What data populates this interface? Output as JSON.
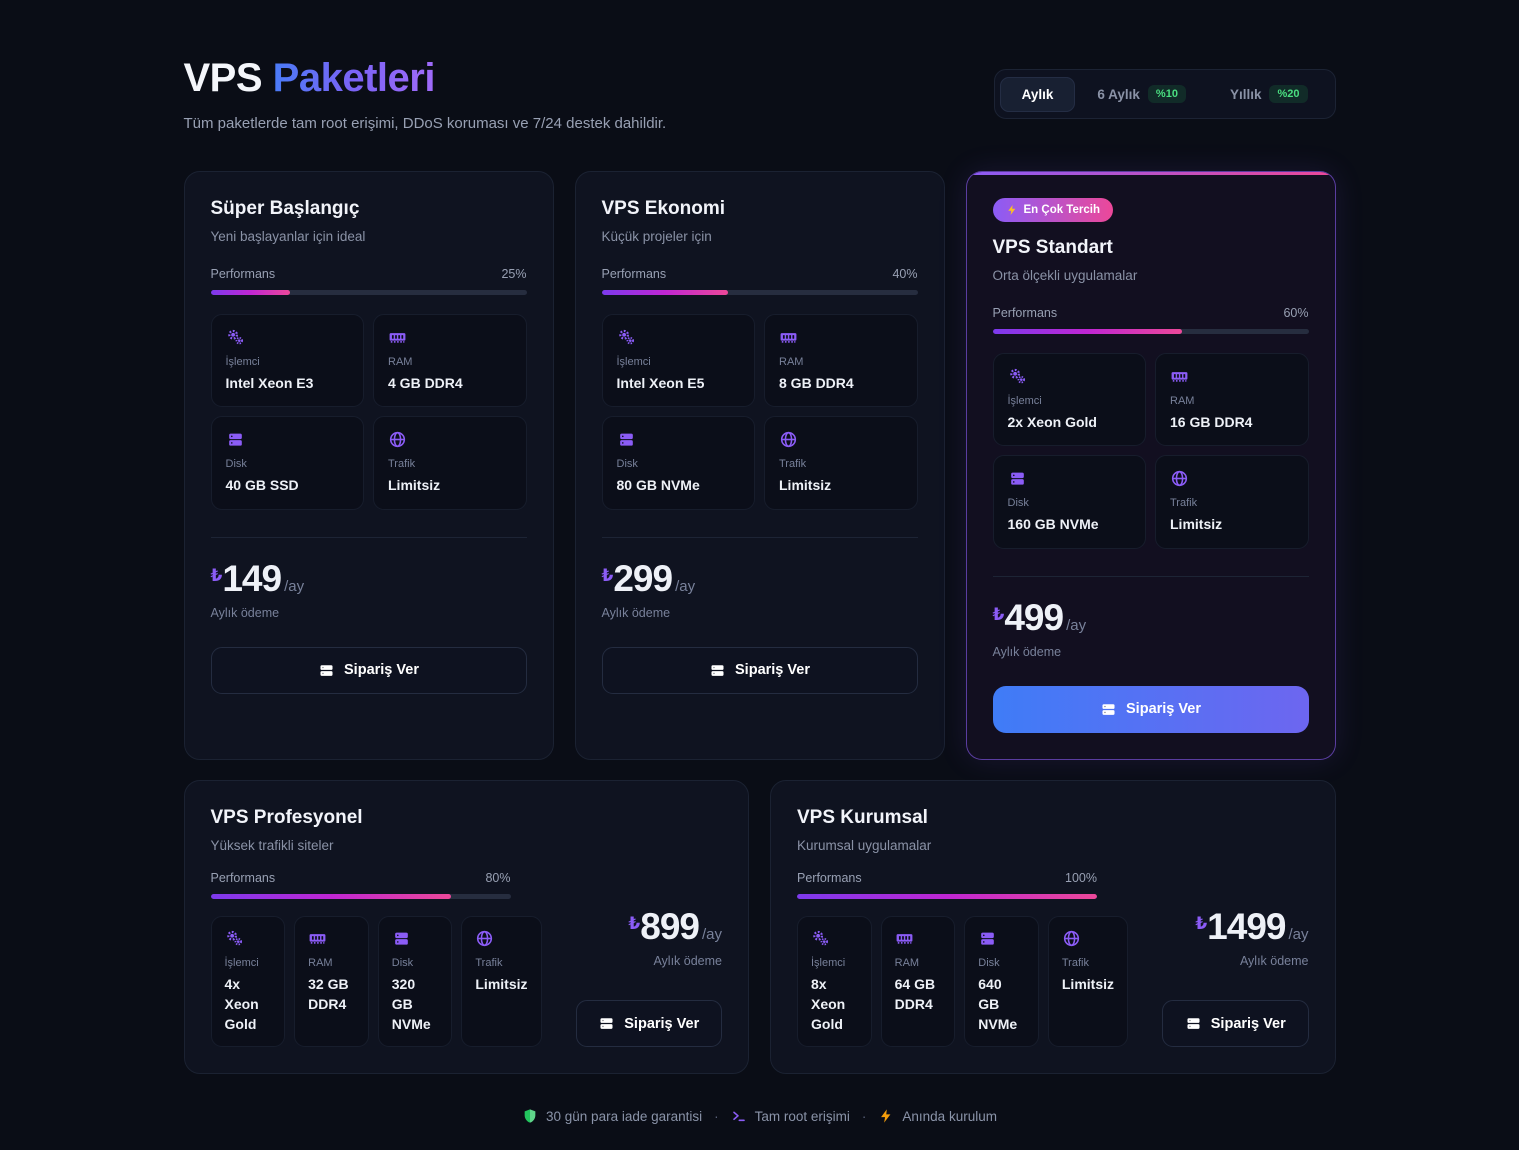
{
  "header": {
    "title_primary": "VPS",
    "title_accent": "Paketleri",
    "subtitle": "Tüm paketlerde tam root erişimi, DDoS koruması ve 7/24 destek dahildir."
  },
  "billing": {
    "active": "Aylık",
    "options": [
      {
        "label": "Aylık",
        "badge": ""
      },
      {
        "label": "6 Aylık",
        "badge": "%10"
      },
      {
        "label": "Yıllık",
        "badge": "%20"
      }
    ]
  },
  "labels": {
    "performance": "Performans",
    "billing_note": "Aylık ödeme",
    "cta": "Sipariş Ver",
    "currency": "₺",
    "period": "/ay"
  },
  "plans": [
    {
      "name": "Süper Başlangıç",
      "description": "Yeni başlayanlar için ideal",
      "performance_pct": "25%",
      "performance_value": 25,
      "specs": [
        {
          "icon": "cpu-icon",
          "label": "İşlemci",
          "value": "Intel Xeon E3"
        },
        {
          "icon": "ram-icon",
          "label": "RAM",
          "value": "4 GB DDR4"
        },
        {
          "icon": "disk-icon",
          "label": "Disk",
          "value": "40 GB SSD"
        },
        {
          "icon": "globe-icon",
          "label": "Trafik",
          "value": "Limitsiz"
        }
      ],
      "price": "149"
    },
    {
      "name": "VPS Ekonomi",
      "description": "Küçük projeler için",
      "performance_pct": "40%",
      "performance_value": 40,
      "specs": [
        {
          "icon": "cpu-icon",
          "label": "İşlemci",
          "value": "Intel Xeon E5"
        },
        {
          "icon": "ram-icon",
          "label": "RAM",
          "value": "8 GB DDR4"
        },
        {
          "icon": "disk-icon",
          "label": "Disk",
          "value": "80 GB NVMe"
        },
        {
          "icon": "globe-icon",
          "label": "Trafik",
          "value": "Limitsiz"
        }
      ],
      "price": "299"
    },
    {
      "name": "VPS Standart",
      "description": "Orta ölçekli uygulamalar",
      "badge": "En Çok Tercih",
      "performance_pct": "60%",
      "performance_value": 60,
      "specs": [
        {
          "icon": "cpu-icon",
          "label": "İşlemci",
          "value": "2x Xeon Gold"
        },
        {
          "icon": "ram-icon",
          "label": "RAM",
          "value": "16 GB DDR4"
        },
        {
          "icon": "disk-icon",
          "label": "Disk",
          "value": "160 GB NVMe"
        },
        {
          "icon": "globe-icon",
          "label": "Trafik",
          "value": "Limitsiz"
        }
      ],
      "price": "499"
    },
    {
      "name": "VPS Profesyonel",
      "description": "Yüksek trafikli siteler",
      "performance_pct": "80%",
      "performance_value": 80,
      "specs": [
        {
          "icon": "cpu-icon",
          "label": "İşlemci",
          "value": "4x Xeon Gold"
        },
        {
          "icon": "ram-icon",
          "label": "RAM",
          "value": "32 GB DDR4"
        },
        {
          "icon": "disk-icon",
          "label": "Disk",
          "value": "320 GB NVMe"
        },
        {
          "icon": "globe-icon",
          "label": "Trafik",
          "value": "Limitsiz"
        }
      ],
      "price": "899"
    },
    {
      "name": "VPS Kurumsal",
      "description": "Kurumsal uygulamalar",
      "performance_pct": "100%",
      "performance_value": 100,
      "specs": [
        {
          "icon": "cpu-icon",
          "label": "İşlemci",
          "value": "8x Xeon Gold"
        },
        {
          "icon": "ram-icon",
          "label": "RAM",
          "value": "64 GB DDR4"
        },
        {
          "icon": "disk-icon",
          "label": "Disk",
          "value": "640 GB NVMe"
        },
        {
          "icon": "globe-icon",
          "label": "Trafik",
          "value": "Limitsiz"
        }
      ],
      "price": "1499"
    }
  ],
  "footer": {
    "separator": "·",
    "items": [
      {
        "icon": "shield-icon",
        "text": "30 gün para iade garantisi"
      },
      {
        "icon": "terminal-icon",
        "text": "Tam root erişimi"
      },
      {
        "icon": "bolt-icon",
        "text": "Anında kurulum"
      }
    ]
  },
  "colors": {
    "accent_purple": "#8b5cf6",
    "accent_pink": "#ec4899",
    "accent_blue": "#3f7cf7",
    "success_green": "#4ade80",
    "bolt_yellow": "#fbbf24",
    "bolt_orange": "#f59e0b"
  }
}
